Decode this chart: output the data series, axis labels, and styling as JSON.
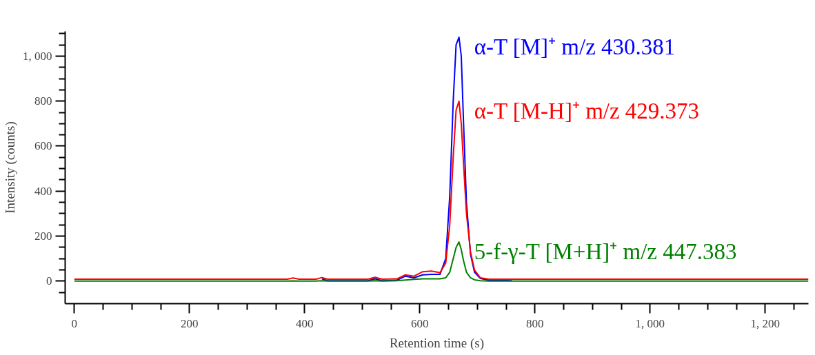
{
  "chart_data": {
    "type": "line",
    "xlabel": "Retention time (s)",
    "ylabel": "Intensity (counts)",
    "x": [
      0,
      100,
      200,
      300,
      370,
      380,
      390,
      420,
      430,
      440,
      510,
      522,
      535,
      560,
      575,
      590,
      605,
      620,
      635,
      645,
      652,
      658,
      663,
      668,
      672,
      676,
      681,
      688,
      695,
      705,
      720,
      760,
      900,
      1100,
      1275
    ],
    "series": [
      {
        "name": "α-T [M]⁺ m/z 430.381",
        "color": "#0000ff",
        "values": [
          null,
          null,
          null,
          null,
          null,
          null,
          null,
          null,
          10,
          2,
          2,
          10,
          2,
          4,
          22,
          15,
          28,
          30,
          30,
          100,
          380,
          800,
          1050,
          1084,
          1000,
          700,
          350,
          120,
          40,
          12,
          5,
          2,
          null,
          null,
          null
        ]
      },
      {
        "name": "α-T [M-H]⁺ m/z 429.373",
        "color": "#ff0000",
        "values": [
          9,
          9,
          9,
          9,
          9,
          14,
          9,
          9,
          16,
          9,
          9,
          17,
          9,
          10,
          28,
          22,
          42,
          45,
          38,
          80,
          250,
          550,
          760,
          800,
          700,
          520,
          300,
          130,
          50,
          15,
          9,
          9,
          9,
          9,
          9
        ]
      },
      {
        "name": "5-f-γ-T [M+H]⁺ m/z 447.383",
        "color": "#008000",
        "values": [
          0,
          0,
          0,
          0,
          0,
          1,
          0,
          0,
          2,
          0,
          0,
          2,
          0,
          2,
          5,
          8,
          10,
          10,
          10,
          15,
          40,
          100,
          150,
          174,
          140,
          90,
          40,
          15,
          6,
          2,
          0,
          0,
          0,
          0,
          0
        ]
      }
    ],
    "xlim": [
      -16,
      1275
    ],
    "ylim": [
      -100,
      1110
    ],
    "xticks": [
      0,
      {
        "value": 50,
        "label": null
      },
      {
        "value": 100,
        "label": null
      },
      {
        "value": 150,
        "label": null
      },
      200,
      {
        "value": 250,
        "label": null
      },
      {
        "value": 300,
        "label": null
      },
      {
        "value": 350,
        "label": null
      },
      400,
      {
        "value": 450,
        "label": null
      },
      {
        "value": 500,
        "label": null
      },
      {
        "value": 550,
        "label": null
      },
      600,
      {
        "value": 650,
        "label": null
      },
      {
        "value": 700,
        "label": null
      },
      {
        "value": 750,
        "label": null
      },
      800,
      {
        "value": 850,
        "label": null
      },
      {
        "value": 900,
        "label": null
      },
      {
        "value": 950,
        "label": null
      },
      {
        "value": 1000,
        "label": "1, 000"
      },
      {
        "value": 1050,
        "label": null
      },
      {
        "value": 1100,
        "label": null
      },
      {
        "value": 1150,
        "label": null
      },
      {
        "value": 1200,
        "label": "1, 200"
      },
      {
        "value": 1250,
        "label": null
      }
    ],
    "yticks": [
      {
        "value": -50,
        "label": null
      },
      0,
      {
        "value": 50,
        "label": null
      },
      {
        "value": 100,
        "label": null
      },
      {
        "value": 150,
        "label": null
      },
      200,
      {
        "value": 250,
        "label": null
      },
      {
        "value": 300,
        "label": null
      },
      {
        "value": 350,
        "label": null
      },
      400,
      {
        "value": 450,
        "label": null
      },
      {
        "value": 500,
        "label": null
      },
      {
        "value": 550,
        "label": null
      },
      600,
      {
        "value": 650,
        "label": null
      },
      {
        "value": 700,
        "label": null
      },
      {
        "value": 750,
        "label": null
      },
      800,
      {
        "value": 850,
        "label": null
      },
      {
        "value": 900,
        "label": null
      },
      {
        "value": 950,
        "label": null
      },
      {
        "value": 1000,
        "label": "1, 000"
      },
      {
        "value": 1050,
        "label": null
      },
      {
        "value": 1100,
        "label": null
      }
    ],
    "grid": false,
    "marker": "none",
    "line_style": "solid"
  }
}
